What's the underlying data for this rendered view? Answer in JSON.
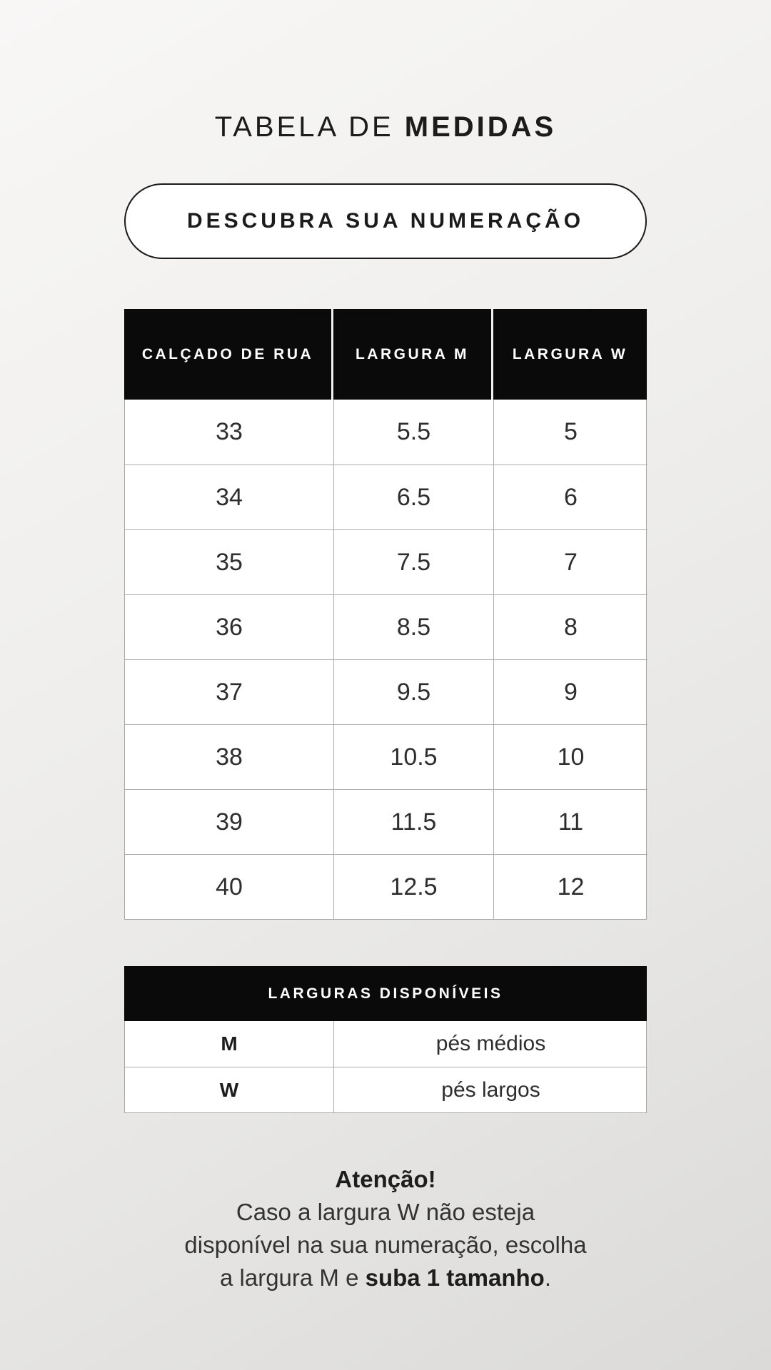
{
  "page": {
    "title_regular": "TABELA DE ",
    "title_bold": "MEDIDAS",
    "pill_label": "DESCUBRA SUA NUMERAÇÃO"
  },
  "colors": {
    "table_header_bg": "#0a0a0a",
    "table_header_text": "#ffffff",
    "page_background": "#edecea",
    "cell_border": "#aeaeae"
  },
  "size_table": {
    "headers": [
      "CALÇADO DE RUA",
      "LARGURA M",
      "LARGURA W"
    ],
    "rows": [
      [
        "33",
        "5.5",
        "5"
      ],
      [
        "34",
        "6.5",
        "6"
      ],
      [
        "35",
        "7.5",
        "7"
      ],
      [
        "36",
        "8.5",
        "8"
      ],
      [
        "37",
        "9.5",
        "9"
      ],
      [
        "38",
        "10.5",
        "10"
      ],
      [
        "39",
        "11.5",
        "11"
      ],
      [
        "40",
        "12.5",
        "12"
      ]
    ]
  },
  "width_table": {
    "header": "LARGURAS DISPONÍVEIS",
    "rows": [
      {
        "code": "M",
        "desc": "pés médios"
      },
      {
        "code": "W",
        "desc": "pés largos"
      }
    ]
  },
  "note": {
    "title": "Atenção!",
    "line1": "Caso a largura W não esteja",
    "line2": "disponível na sua numeração, escolha",
    "line3_prefix": "a largura M e ",
    "line3_bold": "suba 1 tamanho",
    "line3_suffix": "."
  }
}
